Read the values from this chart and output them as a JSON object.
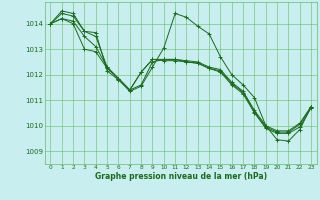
{
  "title": "Graphe pression niveau de la mer (hPa)",
  "background_color": "#c8eef0",
  "grid_color": "#66bb66",
  "line_color": "#1a6b1a",
  "xlim": [
    -0.5,
    23.5
  ],
  "ylim": [
    1008.5,
    1014.85
  ],
  "yticks": [
    1009,
    1010,
    1011,
    1012,
    1013,
    1014
  ],
  "xticks": [
    0,
    1,
    2,
    3,
    4,
    5,
    6,
    7,
    8,
    9,
    10,
    11,
    12,
    13,
    14,
    15,
    16,
    17,
    18,
    19,
    20,
    21,
    22,
    23
  ],
  "series": [
    [
      1014.0,
      1014.5,
      1014.4,
      1013.7,
      1013.65,
      1012.15,
      1011.8,
      1011.35,
      1011.55,
      1012.3,
      1013.05,
      1014.4,
      1014.25,
      1013.9,
      1013.6,
      1012.7,
      1012.0,
      1011.6,
      1011.1,
      1010.0,
      1009.45,
      1009.4,
      1009.85,
      1010.75
    ],
    [
      1014.0,
      1014.4,
      1014.3,
      1013.7,
      1013.5,
      1012.3,
      1011.85,
      1011.4,
      1011.6,
      1012.5,
      1012.6,
      1012.6,
      1012.55,
      1012.5,
      1012.3,
      1012.2,
      1011.7,
      1011.35,
      1010.6,
      1010.0,
      1009.8,
      1009.8,
      1010.1,
      1010.75
    ],
    [
      1014.0,
      1014.2,
      1014.1,
      1013.5,
      1013.1,
      1012.3,
      1011.85,
      1011.4,
      1012.1,
      1012.6,
      1012.6,
      1012.6,
      1012.5,
      1012.45,
      1012.25,
      1012.15,
      1011.65,
      1011.3,
      1010.55,
      1009.95,
      1009.75,
      1009.75,
      1010.05,
      1010.75
    ],
    [
      1014.0,
      1014.2,
      1014.0,
      1013.0,
      1012.9,
      1012.25,
      1011.85,
      1011.4,
      1012.1,
      1012.6,
      1012.55,
      1012.55,
      1012.5,
      1012.45,
      1012.25,
      1012.1,
      1011.6,
      1011.25,
      1010.5,
      1009.9,
      1009.7,
      1009.7,
      1009.95,
      1010.7
    ]
  ]
}
